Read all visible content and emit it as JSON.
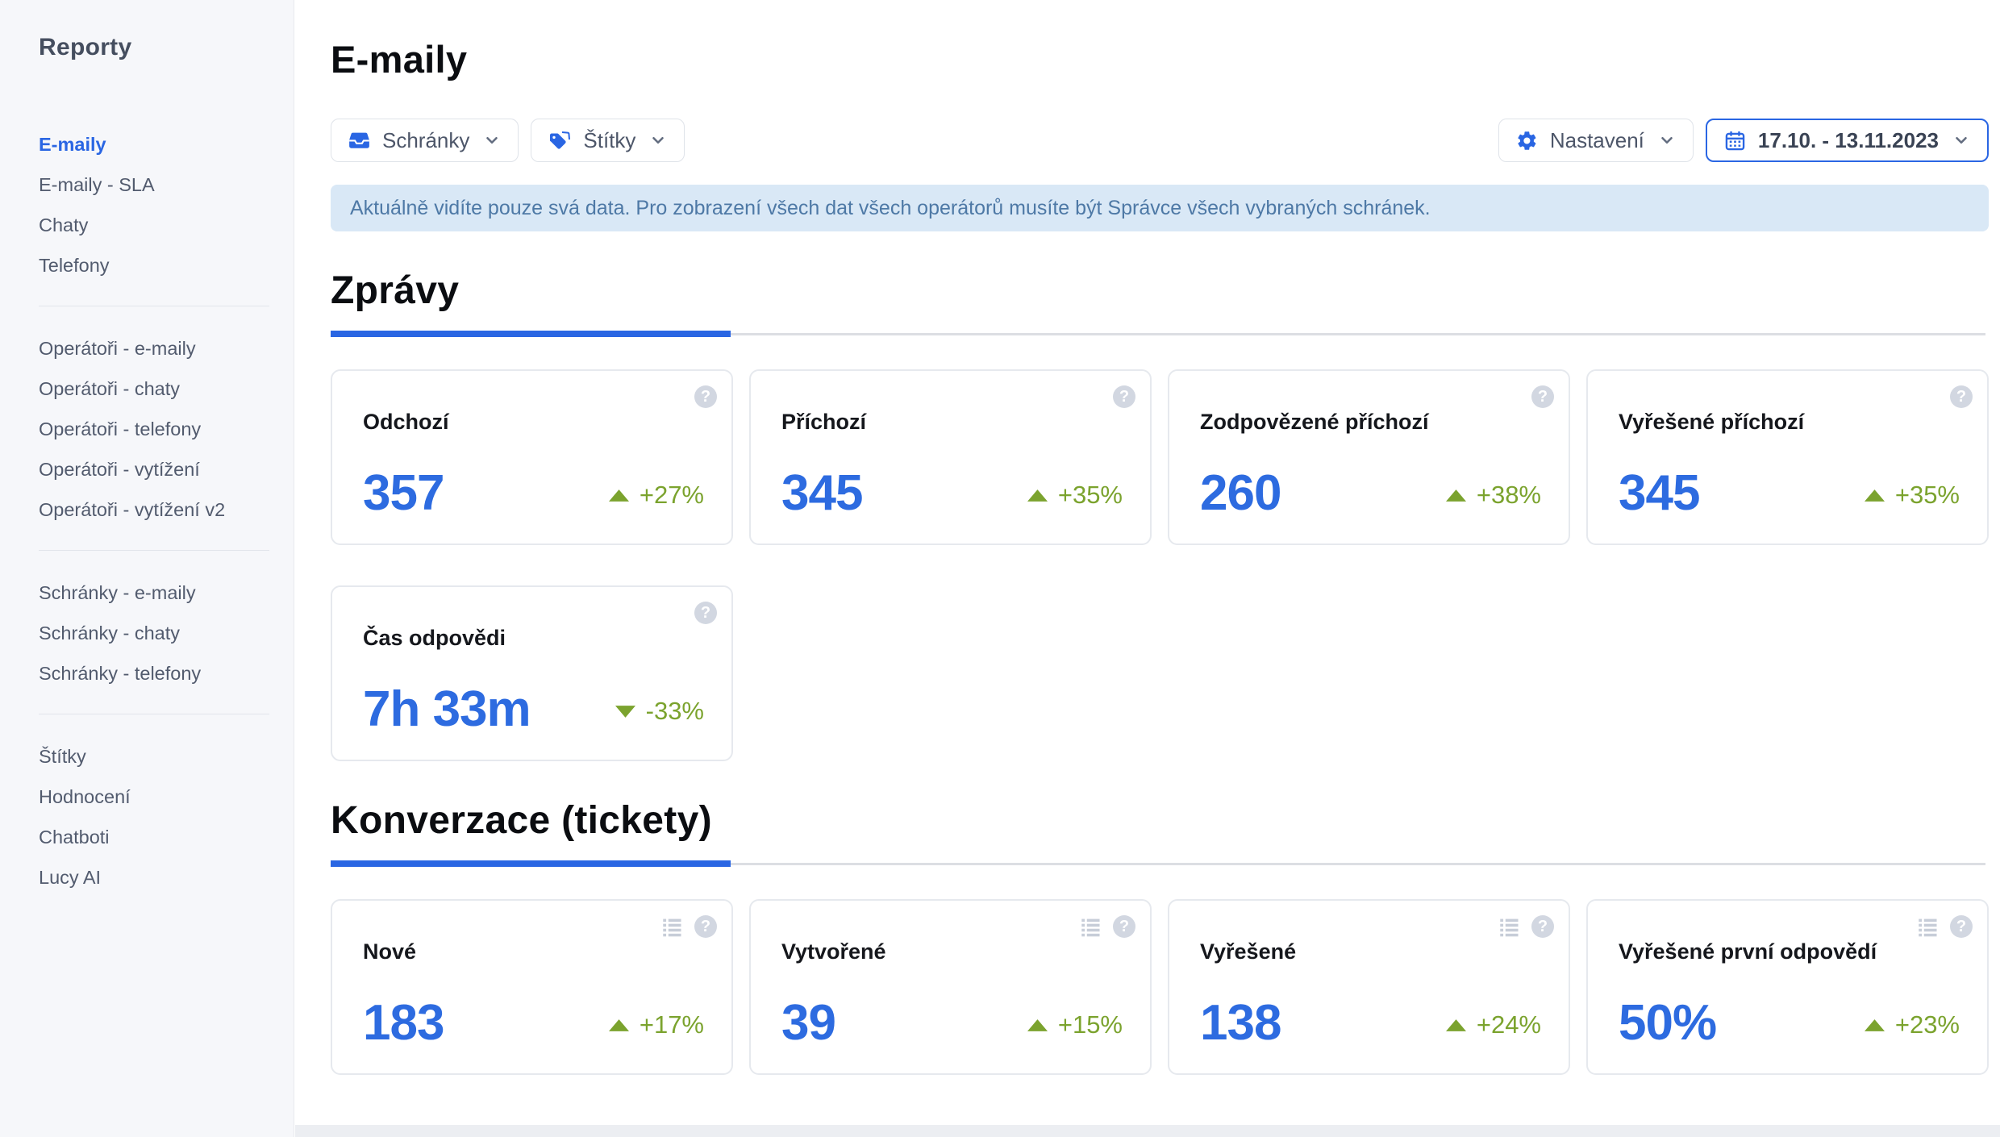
{
  "colors": {
    "accent": "#2a66e3",
    "value": "#2d6be0",
    "green": "#7ba32e",
    "banner_bg": "#d9e8f6",
    "banner_text": "#4e79a6"
  },
  "sidebar": {
    "title": "Reporty",
    "groups": [
      {
        "items": [
          {
            "label": "E-maily",
            "active": true
          },
          {
            "label": "E-maily - SLA"
          },
          {
            "label": "Chaty"
          },
          {
            "label": "Telefony"
          }
        ]
      },
      {
        "items": [
          {
            "label": "Operátoři - e-maily"
          },
          {
            "label": "Operátoři - chaty"
          },
          {
            "label": "Operátoři - telefony"
          },
          {
            "label": "Operátoři - vytížení"
          },
          {
            "label": "Operátoři - vytížení v2"
          }
        ]
      },
      {
        "items": [
          {
            "label": "Schránky - e-maily"
          },
          {
            "label": "Schránky - chaty"
          },
          {
            "label": "Schránky - telefony"
          }
        ]
      },
      {
        "items": [
          {
            "label": "Štítky"
          },
          {
            "label": "Hodnocení"
          },
          {
            "label": "Chatboti"
          },
          {
            "label": "Lucy AI"
          }
        ]
      }
    ]
  },
  "header": {
    "title": "E-maily",
    "filters": [
      {
        "label": "Schránky",
        "icon": "inbox-icon"
      },
      {
        "label": "Štítky",
        "icon": "tags-icon"
      }
    ],
    "settings_label": "Nastavení",
    "date_range": "17.10. - 13.11.2023"
  },
  "banner": {
    "text": "Aktuálně vidíte pouze svá data. Pro zobrazení všech dat všech operátorů musíte být Správce všech vybraných schránek."
  },
  "sections": [
    {
      "title": "Zprávy",
      "cards": [
        {
          "title": "Odchozí",
          "value": "357",
          "trend": "+27%",
          "direction": "up",
          "list_icon": false
        },
        {
          "title": "Příchozí",
          "value": "345",
          "trend": "+35%",
          "direction": "up",
          "list_icon": false
        },
        {
          "title": "Zodpovězené příchozí",
          "value": "260",
          "trend": "+38%",
          "direction": "up",
          "list_icon": false
        },
        {
          "title": "Vyřešené příchozí",
          "value": "345",
          "trend": "+35%",
          "direction": "up",
          "list_icon": false
        },
        {
          "title": "Čas odpovědi",
          "value": "7h 33m",
          "trend": "-33%",
          "direction": "down",
          "list_icon": false
        }
      ]
    },
    {
      "title": "Konverzace (tickety)",
      "cards": [
        {
          "title": "Nové",
          "value": "183",
          "trend": "+17%",
          "direction": "up",
          "list_icon": true
        },
        {
          "title": "Vytvořené",
          "value": "39",
          "trend": "+15%",
          "direction": "up",
          "list_icon": true
        },
        {
          "title": "Vyřešené",
          "value": "138",
          "trend": "+24%",
          "direction": "up",
          "list_icon": true
        },
        {
          "title": "Vyřešené první odpovědí",
          "value": "50%",
          "trend": "+23%",
          "direction": "up",
          "list_icon": true
        }
      ]
    }
  ]
}
